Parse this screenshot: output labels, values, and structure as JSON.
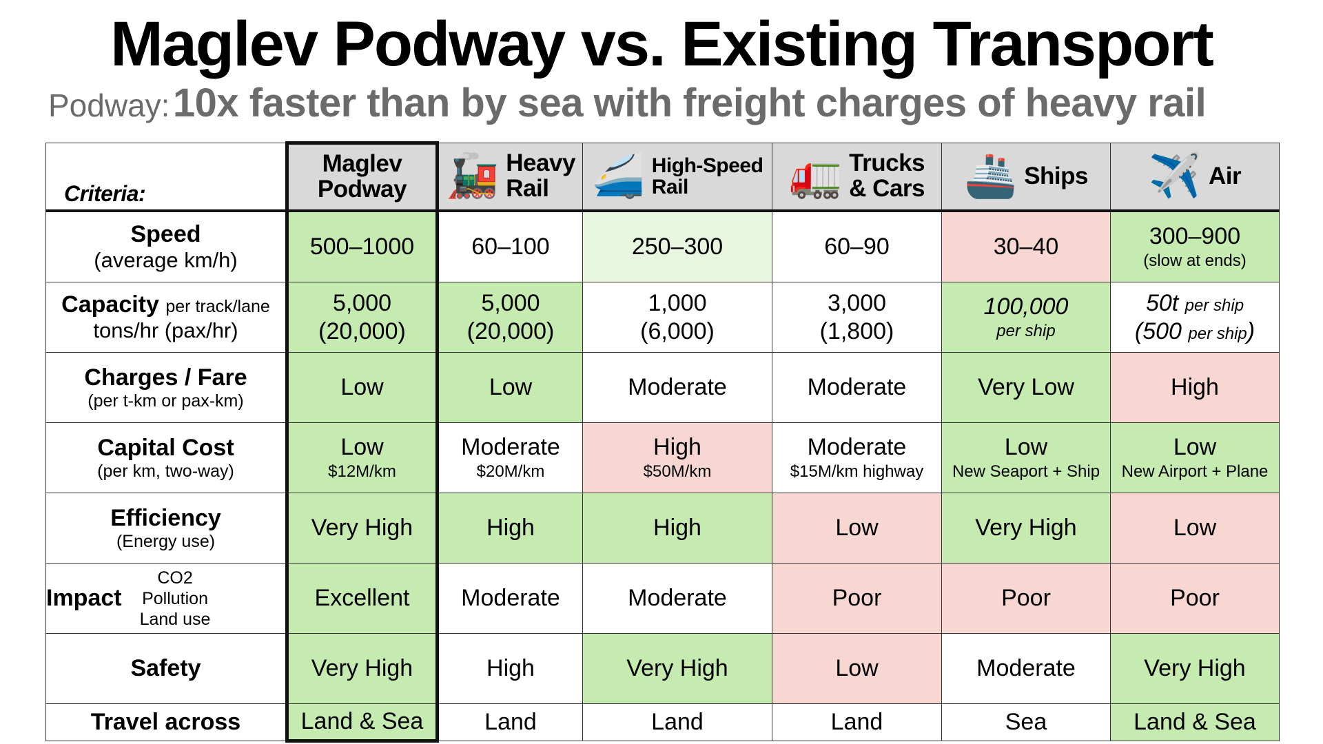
{
  "title": "Maglev Podway vs. Existing Transport",
  "subtitle": {
    "lead": "Podway:",
    "main": "10x faster than by sea with freight charges of heavy rail"
  },
  "colors": {
    "green": "#c5ebb0",
    "light_green": "#e8f6e0",
    "pink": "#f8d7d3",
    "header_gray": "#d9d9d9",
    "subtitle_gray": "#6b6b6b"
  },
  "table": {
    "criteria_label": "Criteria:",
    "columns": [
      {
        "label_line1": "Maglev",
        "label_line2": "Podway",
        "icon": ""
      },
      {
        "label_line1": "Heavy",
        "label_line2": "Rail",
        "icon": "locomotive-icon",
        "glyph": "🚂"
      },
      {
        "label_line1": "High-Speed",
        "label_line2": "Rail",
        "icon": "bullet-train-icon",
        "glyph": "🚄"
      },
      {
        "label_line1": "Trucks",
        "label_line2": "& Cars",
        "icon": "truck-icon",
        "glyph": "🚛"
      },
      {
        "label_line1": "Ships",
        "label_line2": "",
        "icon": "ship-icon",
        "glyph": "🚢"
      },
      {
        "label_line1": "Air",
        "label_line2": "",
        "icon": "airplane-icon",
        "glyph": "✈️"
      }
    ],
    "rows": [
      {
        "label": "Speed",
        "sublabel": "(average km/h)",
        "cells": [
          {
            "main": "500–1000",
            "color": "green"
          },
          {
            "main": "60–100",
            "color": "white"
          },
          {
            "main": "250–300",
            "color": "lightgreen"
          },
          {
            "main": "60–90",
            "color": "white"
          },
          {
            "main": "30–40",
            "color": "pink"
          },
          {
            "main": "300–900",
            "sub": "(slow at ends)",
            "color": "green"
          }
        ]
      },
      {
        "label": "Capacity",
        "label_inline": "per track/lane",
        "sublabel": "tons/hr (pax/hr)",
        "cells": [
          {
            "main": "5,000",
            "main2": "(20,000)",
            "color": "green"
          },
          {
            "main": "5,000",
            "main2": "(20,000)",
            "color": "green"
          },
          {
            "main": "1,000",
            "main2": "(6,000)",
            "color": "white"
          },
          {
            "main": "3,000",
            "main2": "(1,800)",
            "color": "white"
          },
          {
            "main": "100,000",
            "sub": "per ship",
            "color": "green"
          },
          {
            "main": "50t",
            "main_suffix": "per ship",
            "main2": "(500",
            "main2_suffix": "per ship",
            "main2_close": ")",
            "color": "white"
          }
        ]
      },
      {
        "label": "Charges / Fare",
        "sublabel": "(per t-km or pax-km)",
        "cells": [
          {
            "main": "Low",
            "color": "green"
          },
          {
            "main": "Low",
            "color": "green"
          },
          {
            "main": "Moderate",
            "color": "white"
          },
          {
            "main": "Moderate",
            "color": "white"
          },
          {
            "main": "Very Low",
            "color": "green"
          },
          {
            "main": "High",
            "color": "pink"
          }
        ]
      },
      {
        "label": "Capital Cost",
        "sublabel": "(per km, two-way)",
        "cells": [
          {
            "main": "Low",
            "sub": "$12M/km",
            "color": "green"
          },
          {
            "main": "Moderate",
            "sub": "$20M/km",
            "color": "white"
          },
          {
            "main": "High",
            "sub": "$50M/km",
            "color": "pink"
          },
          {
            "main": "Moderate",
            "sub": "$15M/km highway",
            "color": "white"
          },
          {
            "main": "Low",
            "sub": "New Seaport + Ship",
            "color": "green"
          },
          {
            "main": "Low",
            "sub": "New Airport + Plane",
            "color": "green"
          }
        ]
      },
      {
        "label": "Efficiency",
        "sublabel": "(Energy use)",
        "cells": [
          {
            "main": "Very High",
            "color": "green"
          },
          {
            "main": "High",
            "color": "green"
          },
          {
            "main": "High",
            "color": "green"
          },
          {
            "main": "Low",
            "color": "pink"
          },
          {
            "main": "Very High",
            "color": "green"
          },
          {
            "main": "Low",
            "color": "pink"
          }
        ]
      },
      {
        "label": "Impact",
        "impact_items": [
          "CO2",
          "Pollution",
          "Land use"
        ],
        "cells": [
          {
            "main": "Excellent",
            "color": "green"
          },
          {
            "main": "Moderate",
            "color": "white"
          },
          {
            "main": "Moderate",
            "color": "white"
          },
          {
            "main": "Poor",
            "color": "pink"
          },
          {
            "main": "Poor",
            "color": "pink"
          },
          {
            "main": "Poor",
            "color": "pink"
          }
        ]
      },
      {
        "label": "Safety",
        "cells": [
          {
            "main": "Very High",
            "color": "green"
          },
          {
            "main": "High",
            "color": "white"
          },
          {
            "main": "Very High",
            "color": "green"
          },
          {
            "main": "Low",
            "color": "pink"
          },
          {
            "main": "Moderate",
            "color": "white"
          },
          {
            "main": "Very High",
            "color": "green"
          }
        ]
      },
      {
        "label": "Travel across",
        "cells": [
          {
            "main": "Land & Sea",
            "color": "green"
          },
          {
            "main": "Land",
            "color": "white"
          },
          {
            "main": "Land",
            "color": "white"
          },
          {
            "main": "Land",
            "color": "white"
          },
          {
            "main": "Sea",
            "color": "white"
          },
          {
            "main": "Land & Sea",
            "color": "green"
          }
        ]
      }
    ]
  }
}
